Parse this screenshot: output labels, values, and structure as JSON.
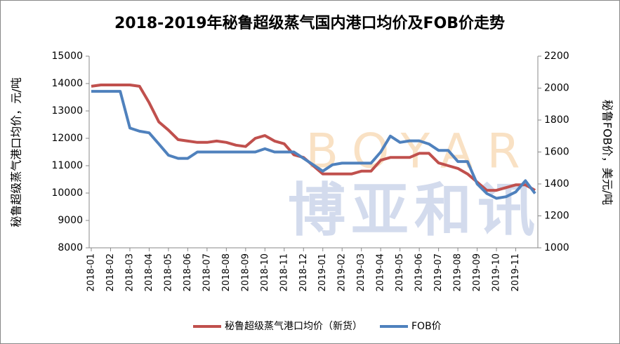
{
  "chart_data": {
    "type": "line",
    "title": "2018-2019年秘鲁超级蒸气国内港口均价及FOB价走势",
    "y_label": "秘鲁超级蒸气港口均价，元/吨",
    "y2_label": "秘鲁FOB价，美元/吨",
    "watermark": [
      "BOYAR",
      "博亚和讯"
    ],
    "categories": [
      "2018-01",
      null,
      "2018-02",
      null,
      "2018-03",
      null,
      "2018-04",
      null,
      "2018-05",
      null,
      "2018-06",
      null,
      "2018-07",
      null,
      "2018-08",
      null,
      "2018-09",
      null,
      "2018-10",
      null,
      "2018-11",
      null,
      "2018-12",
      null,
      "2019-01",
      null,
      "2019-02",
      null,
      "2019-03",
      null,
      "2019-04",
      null,
      "2019-05",
      null,
      "2019-06",
      null,
      "2019-07",
      null,
      "2019-08",
      null,
      "2019-09",
      null,
      "2019-10",
      null,
      "2019-11",
      null,
      null
    ],
    "series": [
      {
        "name": "秘鲁超级蒸气港口均价（新货）",
        "color": "#c0504d",
        "axis": "y",
        "values": [
          13900,
          13950,
          13950,
          13950,
          13950,
          13900,
          13300,
          12600,
          12300,
          11950,
          11900,
          11850,
          11850,
          11900,
          11850,
          11750,
          11700,
          12000,
          12100,
          11900,
          11800,
          11400,
          11300,
          11000,
          10700,
          10700,
          10700,
          10700,
          10800,
          10800,
          11200,
          11300,
          11300,
          11300,
          11450,
          11450,
          11100,
          11000,
          10900,
          10700,
          10400,
          10100,
          10100,
          10200,
          10300,
          10300,
          10100
        ]
      },
      {
        "name": "FOB价",
        "color": "#4f81bd",
        "axis": "y2",
        "values": [
          1980,
          1980,
          1980,
          1980,
          1750,
          1730,
          1720,
          1650,
          1580,
          1560,
          1560,
          1600,
          1600,
          1600,
          1600,
          1600,
          1600,
          1600,
          1620,
          1600,
          1600,
          1600,
          1560,
          1520,
          1480,
          1520,
          1530,
          1530,
          1530,
          1530,
          1600,
          1700,
          1660,
          1670,
          1670,
          1650,
          1610,
          1610,
          1540,
          1540,
          1400,
          1340,
          1310,
          1320,
          1350,
          1420,
          1340
        ]
      }
    ],
    "ylim": [
      8000,
      15000
    ],
    "yticks": [
      8000,
      9000,
      10000,
      11000,
      12000,
      13000,
      14000,
      15000
    ],
    "y2lim": [
      1000,
      2200
    ],
    "y2ticks": [
      1000,
      1200,
      1400,
      1600,
      1800,
      2000,
      2200
    ],
    "legend": "bottom"
  }
}
